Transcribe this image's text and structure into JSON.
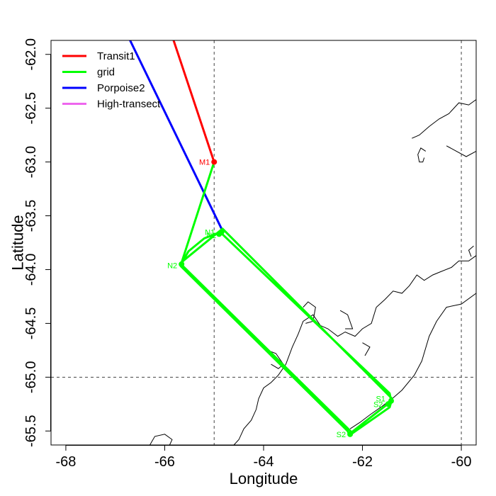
{
  "chart_data": {
    "type": "line",
    "xlabel": "Longitude",
    "ylabel": "Latitude",
    "xlim": [
      -68.3,
      -59.7
    ],
    "ylim": [
      -65.63,
      -61.87
    ],
    "xticks": [
      -68,
      -66,
      -64,
      -62,
      -60
    ],
    "yticks": [
      -62.0,
      -62.5,
      -63.0,
      -63.5,
      -64.0,
      -64.5,
      -65.0,
      -65.5
    ],
    "xtick_labels": [
      "-68",
      "-66",
      "-64",
      "-62",
      "-60"
    ],
    "ytick_labels": [
      "-62.0",
      "-62.5",
      "-63.0",
      "-63.5",
      "-64.0",
      "-64.5",
      "-65.0",
      "-65.5"
    ],
    "reference_lines": {
      "vertical": [
        -65,
        -60
      ],
      "horizontal": [
        -65
      ],
      "style": "dashed"
    },
    "legend": {
      "placement": "top-left",
      "entries": [
        {
          "name": "Transit1",
          "color": "#ff0000"
        },
        {
          "name": "grid",
          "color": "#00ff00"
        },
        {
          "name": "Porpoise2",
          "color": "#0000ff"
        },
        {
          "name": "High-transect",
          "color": "#ee66ee"
        }
      ]
    },
    "series": [
      {
        "name": "Transit1",
        "color": "#ff0000",
        "x": [
          -65.82,
          -65.0
        ],
        "y": [
          -61.87,
          -63.0
        ]
      },
      {
        "name": "Porpoise2",
        "color": "#0000ff",
        "x": [
          -66.7,
          -64.83
        ],
        "y": [
          -61.87,
          -63.64
        ]
      },
      {
        "name": "grid",
        "color": "#00ff00",
        "x": [
          -65.0,
          -65.67,
          -65.52,
          -65.2,
          -64.92,
          -64.86,
          -61.45,
          -61.42,
          -61.52,
          -62.27,
          -62.3,
          -65.67,
          -65.63,
          -64.83,
          -61.4,
          -61.45,
          -62.2,
          -65.67
        ],
        "y": [
          -63.0,
          -63.95,
          -63.83,
          -63.71,
          -63.66,
          -63.66,
          -65.15,
          -65.22,
          -65.26,
          -65.53,
          -65.5,
          -63.97,
          -63.92,
          -63.62,
          -65.2,
          -65.28,
          -65.52,
          -63.95
        ]
      }
    ],
    "point_labels": [
      {
        "text": "M1",
        "x": -65.0,
        "y": -63.0,
        "color": "#ff0000",
        "side": "left"
      },
      {
        "text": "N1",
        "x": -64.9,
        "y": -63.65,
        "color": "#00ff00",
        "side": "left"
      },
      {
        "text": "N2",
        "x": -64.87,
        "y": -63.68,
        "color": "#00ff00",
        "side": "left"
      },
      {
        "text": "N2",
        "x": -65.66,
        "y": -63.96,
        "color": "#00ff00",
        "side": "left"
      },
      {
        "text": "S1",
        "x": -61.45,
        "y": -65.2,
        "color": "#00ff00",
        "side": "left"
      },
      {
        "text": "S2",
        "x": -61.5,
        "y": -65.25,
        "color": "#00ff00",
        "side": "left"
      },
      {
        "text": "S2",
        "x": -62.25,
        "y": -65.53,
        "color": "#00ff00",
        "side": "left"
      }
    ],
    "point_markers": [
      {
        "x": -65.0,
        "y": -63.0,
        "color": "#ff0000"
      },
      {
        "x": -64.85,
        "y": -63.65,
        "color": "#00ff00"
      },
      {
        "x": -64.9,
        "y": -63.67,
        "color": "#00ff00"
      },
      {
        "x": -65.66,
        "y": -63.95,
        "color": "#00ff00"
      },
      {
        "x": -61.42,
        "y": -65.22,
        "color": "#00ff00"
      },
      {
        "x": -61.48,
        "y": -65.25,
        "color": "#00ff00"
      },
      {
        "x": -62.25,
        "y": -65.53,
        "color": "#00ff00"
      }
    ],
    "coastlines": [
      [
        [
          -59.7,
          -64.22
        ],
        [
          -60.0,
          -64.32
        ],
        [
          -60.3,
          -64.35
        ],
        [
          -60.5,
          -64.48
        ],
        [
          -60.65,
          -64.62
        ],
        [
          -60.8,
          -64.85
        ],
        [
          -60.95,
          -64.98
        ],
        [
          -61.2,
          -65.12
        ],
        [
          -61.4,
          -65.2
        ],
        [
          -61.6,
          -65.27
        ],
        [
          -61.85,
          -65.35
        ],
        [
          -62.05,
          -65.42
        ],
        [
          -62.25,
          -65.48
        ]
      ],
      [
        [
          -59.7,
          -63.87
        ],
        [
          -59.85,
          -63.92
        ],
        [
          -60.05,
          -63.92
        ],
        [
          -60.2,
          -63.98
        ],
        [
          -60.42,
          -64.02
        ],
        [
          -60.58,
          -64.05
        ],
        [
          -60.75,
          -64.1
        ],
        [
          -60.9,
          -64.05
        ],
        [
          -61.05,
          -64.15
        ],
        [
          -61.2,
          -64.22
        ],
        [
          -61.38,
          -64.2
        ],
        [
          -61.55,
          -64.28
        ],
        [
          -61.72,
          -64.35
        ],
        [
          -61.82,
          -64.5
        ],
        [
          -62.0,
          -64.55
        ],
        [
          -62.15,
          -64.62
        ],
        [
          -62.35,
          -64.58
        ],
        [
          -62.5,
          -64.62
        ],
        [
          -62.7,
          -64.55
        ],
        [
          -62.85,
          -64.52
        ],
        [
          -63.0,
          -64.42
        ],
        [
          -63.2,
          -64.48
        ],
        [
          -63.3,
          -64.6
        ],
        [
          -63.42,
          -64.72
        ],
        [
          -63.55,
          -64.88
        ],
        [
          -63.7,
          -64.98
        ],
        [
          -63.85,
          -65.05
        ],
        [
          -64.0,
          -65.1
        ],
        [
          -64.1,
          -65.2
        ],
        [
          -64.15,
          -65.3
        ],
        [
          -64.25,
          -65.4
        ],
        [
          -64.4,
          -65.48
        ],
        [
          -64.5,
          -65.58
        ],
        [
          -64.6,
          -65.63
        ]
      ],
      [
        [
          -59.7,
          -62.42
        ],
        [
          -59.85,
          -62.47
        ],
        [
          -60.05,
          -62.45
        ],
        [
          -60.25,
          -62.55
        ],
        [
          -60.45,
          -62.6
        ],
        [
          -60.65,
          -62.67
        ],
        [
          -60.85,
          -62.75
        ],
        [
          -61.0,
          -62.78
        ]
      ],
      [
        [
          -59.7,
          -62.9
        ],
        [
          -59.9,
          -62.95
        ],
        [
          -60.1,
          -62.9
        ],
        [
          -60.3,
          -62.85
        ]
      ],
      [
        [
          -60.72,
          -62.9
        ],
        [
          -60.82,
          -62.87
        ],
        [
          -60.88,
          -62.93
        ],
        [
          -60.85,
          -63.0
        ],
        [
          -60.78,
          -63.0
        ],
        [
          -60.75,
          -62.96
        ]
      ],
      [
        [
          -59.75,
          -63.78
        ],
        [
          -59.85,
          -63.82
        ],
        [
          -59.8,
          -63.88
        ]
      ],
      [
        [
          -66.3,
          -65.63
        ],
        [
          -66.2,
          -65.55
        ],
        [
          -66.0,
          -65.53
        ],
        [
          -65.85,
          -65.58
        ],
        [
          -65.9,
          -65.63
        ]
      ],
      [
        [
          -63.2,
          -64.35
        ],
        [
          -63.1,
          -64.3
        ],
        [
          -62.95,
          -64.35
        ],
        [
          -63.0,
          -64.48
        ],
        [
          -63.15,
          -64.5
        ]
      ],
      [
        [
          -62.45,
          -64.38
        ],
        [
          -62.3,
          -64.42
        ],
        [
          -62.2,
          -64.55
        ],
        [
          -62.35,
          -64.55
        ]
      ],
      [
        [
          -63.92,
          -64.75
        ],
        [
          -63.75,
          -64.78
        ],
        [
          -63.6,
          -64.88
        ],
        [
          -63.7,
          -64.92
        ],
        [
          -63.85,
          -64.88
        ]
      ],
      [
        [
          -62.0,
          -64.68
        ],
        [
          -61.85,
          -64.72
        ],
        [
          -61.95,
          -64.8
        ]
      ]
    ]
  }
}
